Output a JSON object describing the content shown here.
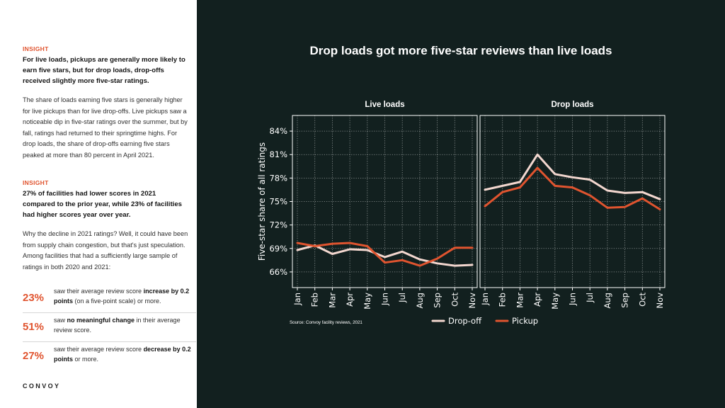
{
  "sidebar": {
    "insight1_label": "INSIGHT",
    "insight1_headline": "For live loads, pickups are generally more likely to earn five stars, but for drop loads, drop-offs received slightly more five-star ratings.",
    "insight1_body": "The share of loads earning five stars is generally higher for live pickups than for live drop-offs. Live pickups saw a noticeable dip in five-star ratings over the summer, but by fall, ratings had returned to their springtime highs. For drop loads, the share of drop-offs earning five stars peaked at more than 80 percent in April 2021.",
    "insight2_label": "INSIGHT",
    "insight2_headline": "27% of facilities had lower scores in 2021 compared to the prior year, while 23% of facilities had higher scores year over year.",
    "insight2_body": "Why the decline in 2021 ratings? Well, it could have been from supply chain congestion, but that's just speculation. Among facilities that had a sufficiently large sample of ratings in both 2020 and 2021:",
    "stats": [
      {
        "pct": "23%",
        "pre": "saw their average review score ",
        "bold": "increase by 0.2 points",
        "post": " (on a five-point scale) or more."
      },
      {
        "pct": "51%",
        "pre": "saw ",
        "bold": "no meaningful change",
        "post": " in their average review score."
      },
      {
        "pct": "27%",
        "pre": "saw their average review score ",
        "bold": "decrease by 0.2 points",
        "post": " or more."
      }
    ],
    "logo": "CONVOY"
  },
  "chart_data": {
    "type": "line",
    "title": "Drop loads got more five-star reviews than live loads",
    "ylabel": "Five-star share of all ratings",
    "ylim": [
      64,
      86
    ],
    "yticks": [
      66,
      69,
      72,
      75,
      78,
      81,
      84
    ],
    "ytick_labels": [
      "66%",
      "69%",
      "72%",
      "75%",
      "78%",
      "81%",
      "84%"
    ],
    "grid": true,
    "legend_position": "bottom-right",
    "x": [
      "Jan",
      "Feb",
      "Mar",
      "Apr",
      "May",
      "Jun",
      "Jul",
      "Aug",
      "Sep",
      "Oct",
      "Nov"
    ],
    "panels": [
      {
        "title": "Live loads",
        "series": [
          {
            "name": "Drop-off",
            "color": "#f3d7cf",
            "values": [
              68.8,
              69.4,
              68.3,
              68.9,
              68.8,
              67.9,
              68.6,
              67.6,
              67.1,
              66.8,
              66.9
            ]
          },
          {
            "name": "Pickup",
            "color": "#e0542f",
            "values": [
              69.7,
              69.3,
              69.6,
              69.7,
              69.3,
              67.2,
              67.5,
              66.8,
              67.7,
              69.1,
              69.1
            ]
          }
        ]
      },
      {
        "title": "Drop loads",
        "series": [
          {
            "name": "Drop-off",
            "color": "#f3d7cf",
            "values": [
              76.5,
              77.0,
              77.5,
              81.0,
              78.5,
              78.1,
              77.8,
              76.4,
              76.1,
              76.2,
              75.3
            ]
          },
          {
            "name": "Pickup",
            "color": "#e0542f",
            "values": [
              74.4,
              76.2,
              76.8,
              79.3,
              77.0,
              76.8,
              75.8,
              74.2,
              74.3,
              75.4,
              74.0
            ]
          }
        ]
      }
    ],
    "source": "Source: Convoy facility reviews, 2021"
  }
}
